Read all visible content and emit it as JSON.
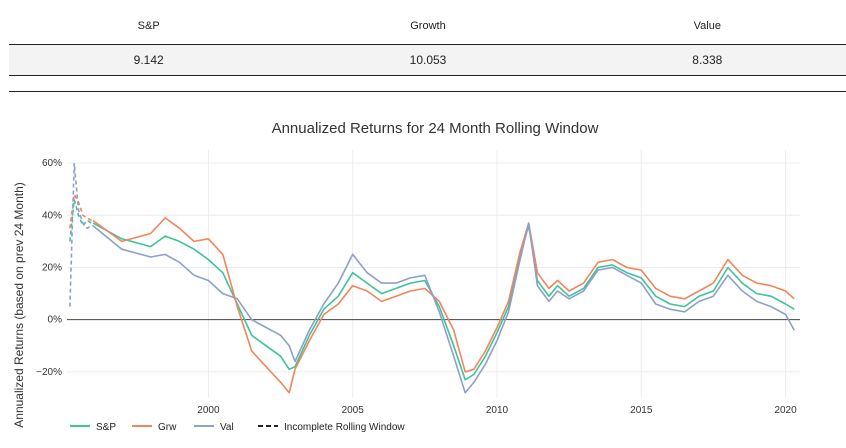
{
  "summary_table": {
    "headers": [
      "S&P",
      "Growth",
      "Value"
    ],
    "values": [
      "9.142",
      "10.053",
      "8.338"
    ]
  },
  "chart_data": {
    "type": "line",
    "title": "Annualized Returns for 24 Month Rolling Window",
    "xlabel": "",
    "ylabel": "Annualized Returns (based on prev 24 Month)",
    "xlim": [
      1995.1,
      2020.5
    ],
    "ylim": [
      -30,
      65
    ],
    "x_ticks": [
      2000,
      2005,
      2010,
      2015,
      2020
    ],
    "y_ticks": [
      -20,
      0,
      20,
      40,
      60
    ],
    "y_tick_labels": [
      "−20%",
      "0%",
      "20%",
      "40%",
      "60%"
    ],
    "grid": true,
    "legend_position": "bottom-left",
    "series": [
      {
        "name": "S&P",
        "color": "#3cc39b",
        "x": [
          1996.0,
          1997.0,
          1998.0,
          1998.5,
          1999.0,
          1999.5,
          2000.0,
          2000.5,
          2001.0,
          2001.5,
          2002.0,
          2002.5,
          2002.8,
          2003.0,
          2003.5,
          2004.0,
          2004.5,
          2005.0,
          2005.5,
          2006.0,
          2006.5,
          2007.0,
          2007.5,
          2008.0,
          2008.5,
          2008.9,
          2009.2,
          2009.6,
          2010.0,
          2010.4,
          2010.8,
          2011.1,
          2011.4,
          2011.8,
          2012.1,
          2012.5,
          2013.0,
          2013.5,
          2014.0,
          2014.5,
          2015.0,
          2015.5,
          2016.0,
          2016.5,
          2017.0,
          2017.5,
          2018.0,
          2018.5,
          2019.0,
          2019.5,
          2020.0,
          2020.3
        ],
        "y": [
          37,
          31,
          28,
          32,
          30,
          27,
          23,
          18,
          6,
          -6,
          -10,
          -14,
          -19,
          -18,
          -6,
          4,
          9,
          18,
          14,
          10,
          12,
          14,
          15,
          5,
          -10,
          -23,
          -21,
          -14,
          -5,
          5,
          25,
          36,
          15,
          9,
          13,
          9,
          12,
          20,
          21,
          18,
          16,
          9,
          6,
          5,
          9,
          11,
          20,
          14,
          10,
          9,
          6,
          4
        ]
      },
      {
        "name": "Grw",
        "color": "#f4845a",
        "x": [
          1996.0,
          1997.0,
          1998.0,
          1998.5,
          1999.0,
          1999.5,
          2000.0,
          2000.5,
          2001.0,
          2001.5,
          2002.0,
          2002.5,
          2002.8,
          2003.0,
          2003.5,
          2004.0,
          2004.5,
          2005.0,
          2005.5,
          2006.0,
          2006.5,
          2007.0,
          2007.5,
          2008.0,
          2008.5,
          2008.9,
          2009.2,
          2009.6,
          2010.0,
          2010.4,
          2010.8,
          2011.1,
          2011.4,
          2011.8,
          2012.1,
          2012.5,
          2013.0,
          2013.5,
          2014.0,
          2014.5,
          2015.0,
          2015.5,
          2016.0,
          2016.5,
          2017.0,
          2017.5,
          2018.0,
          2018.5,
          2019.0,
          2019.5,
          2020.0,
          2020.3
        ],
        "y": [
          38,
          30,
          33,
          39,
          35,
          30,
          31,
          25,
          5,
          -12,
          -18,
          -24,
          -28,
          -19,
          -8,
          2,
          6,
          13,
          11,
          7,
          9,
          11,
          12,
          7,
          -4,
          -20,
          -19,
          -12,
          -3,
          7,
          26,
          37,
          18,
          12,
          15,
          11,
          14,
          22,
          23,
          20,
          19,
          12,
          9,
          8,
          11,
          14,
          23,
          17,
          14,
          13,
          11,
          8
        ]
      },
      {
        "name": "Val",
        "color": "#8e9fcb",
        "x": [
          1996.0,
          1997.0,
          1998.0,
          1998.5,
          1999.0,
          1999.5,
          2000.0,
          2000.5,
          2001.0,
          2001.5,
          2002.0,
          2002.5,
          2002.8,
          2003.0,
          2003.5,
          2004.0,
          2004.5,
          2005.0,
          2005.5,
          2006.0,
          2006.5,
          2007.0,
          2007.5,
          2008.0,
          2008.5,
          2008.9,
          2009.2,
          2009.6,
          2010.0,
          2010.4,
          2010.8,
          2011.1,
          2011.4,
          2011.8,
          2012.1,
          2012.5,
          2013.0,
          2013.5,
          2014.0,
          2014.5,
          2015.0,
          2015.5,
          2016.0,
          2016.5,
          2017.0,
          2017.5,
          2018.0,
          2018.5,
          2019.0,
          2019.5,
          2020.0,
          2020.3
        ],
        "y": [
          36,
          27,
          24,
          25,
          22,
          17,
          15,
          10,
          8,
          0,
          -3,
          -6,
          -10,
          -16,
          -4,
          6,
          14,
          25,
          18,
          14,
          14,
          16,
          17,
          3,
          -14,
          -28,
          -24,
          -17,
          -8,
          3,
          23,
          37,
          13,
          7,
          11,
          8,
          11,
          19,
          20,
          17,
          14,
          6,
          4,
          3,
          7,
          9,
          17,
          11,
          7,
          5,
          2,
          -4
        ]
      }
    ],
    "incomplete_window": {
      "name": "Incomplete Rolling Window",
      "x": [
        1995.2,
        1995.35,
        1995.5,
        1995.65,
        1995.8,
        1995.95
      ],
      "sp": [
        30,
        46,
        40,
        36,
        38,
        37
      ],
      "grw": [
        35,
        48,
        45,
        40,
        39,
        38
      ],
      "val": [
        5,
        60,
        42,
        37,
        35,
        36
      ]
    },
    "legend_labels": [
      "S&P",
      "Grw",
      "Val",
      "Incomplete Rolling Window"
    ]
  }
}
